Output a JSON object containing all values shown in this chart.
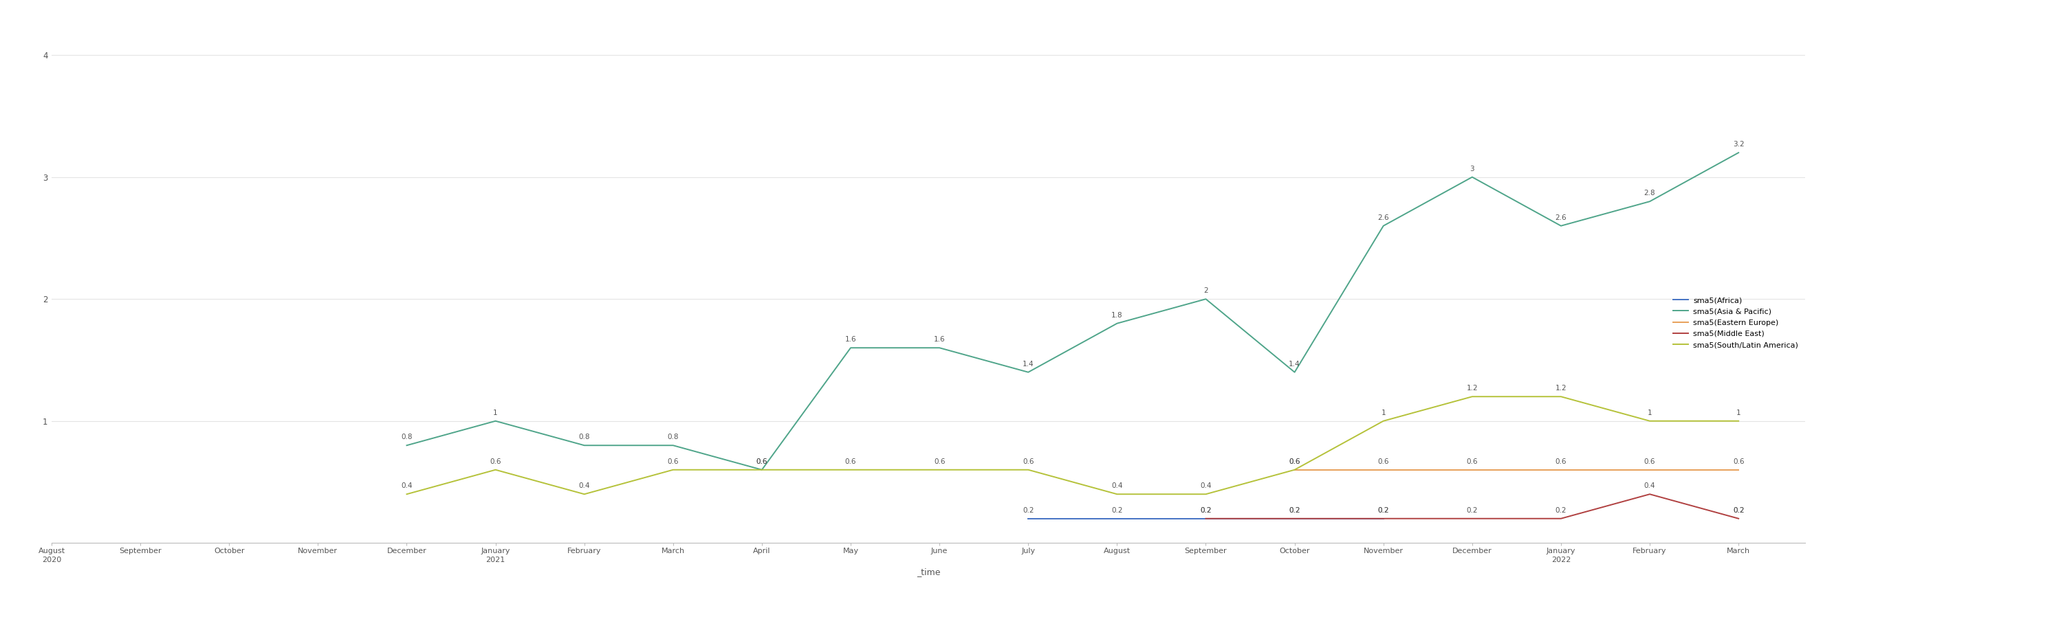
{
  "x_labels": [
    "August\n2020",
    "September",
    "October",
    "November",
    "December",
    "January\n2021",
    "February",
    "March",
    "April",
    "May",
    "June",
    "July",
    "August",
    "September",
    "October",
    "November",
    "December",
    "January\n2022",
    "February",
    "March"
  ],
  "x_label": "_time",
  "series": [
    {
      "name": "sma5(Africa)",
      "color": "#4472c4",
      "values": [
        null,
        null,
        null,
        null,
        null,
        null,
        null,
        null,
        null,
        null,
        null,
        0.2,
        0.2,
        0.2,
        0.2,
        0.2,
        null,
        null,
        null,
        0.2
      ]
    },
    {
      "name": "sma5(Asia & Pacific)",
      "color": "#4fa58a",
      "values": [
        null,
        null,
        null,
        null,
        0.8,
        1.0,
        0.8,
        0.8,
        0.6,
        1.6,
        1.6,
        1.4,
        1.8,
        2.0,
        1.4,
        2.6,
        3.0,
        2.6,
        2.8,
        3.2
      ]
    },
    {
      "name": "sma5(Eastern Europe)",
      "color": "#e8a05a",
      "values": [
        null,
        null,
        null,
        null,
        null,
        null,
        null,
        null,
        null,
        null,
        null,
        null,
        null,
        null,
        0.6,
        0.6,
        0.6,
        0.6,
        0.6,
        0.6
      ]
    },
    {
      "name": "sma5(Middle East)",
      "color": "#b04040",
      "values": [
        null,
        null,
        null,
        null,
        null,
        null,
        null,
        null,
        null,
        null,
        null,
        null,
        null,
        0.2,
        0.2,
        0.2,
        0.2,
        0.2,
        0.4,
        0.2
      ]
    },
    {
      "name": "sma5(South/Latin America)",
      "color": "#b5c23a",
      "values": [
        null,
        null,
        null,
        null,
        0.4,
        0.6,
        0.4,
        0.6,
        0.6,
        0.6,
        0.6,
        0.6,
        0.4,
        0.4,
        0.6,
        1.0,
        1.2,
        1.2,
        1.0,
        1.0
      ]
    }
  ],
  "ylim": [
    0,
    4.3
  ],
  "yticks": [
    1,
    2,
    3,
    4
  ],
  "background_color": "#ffffff",
  "grid_color": "#e4e4e4",
  "annotation_fontsize": 7.5,
  "axis_label_fontsize": 9,
  "tick_fontsize": 8,
  "legend_fontsize": 8
}
